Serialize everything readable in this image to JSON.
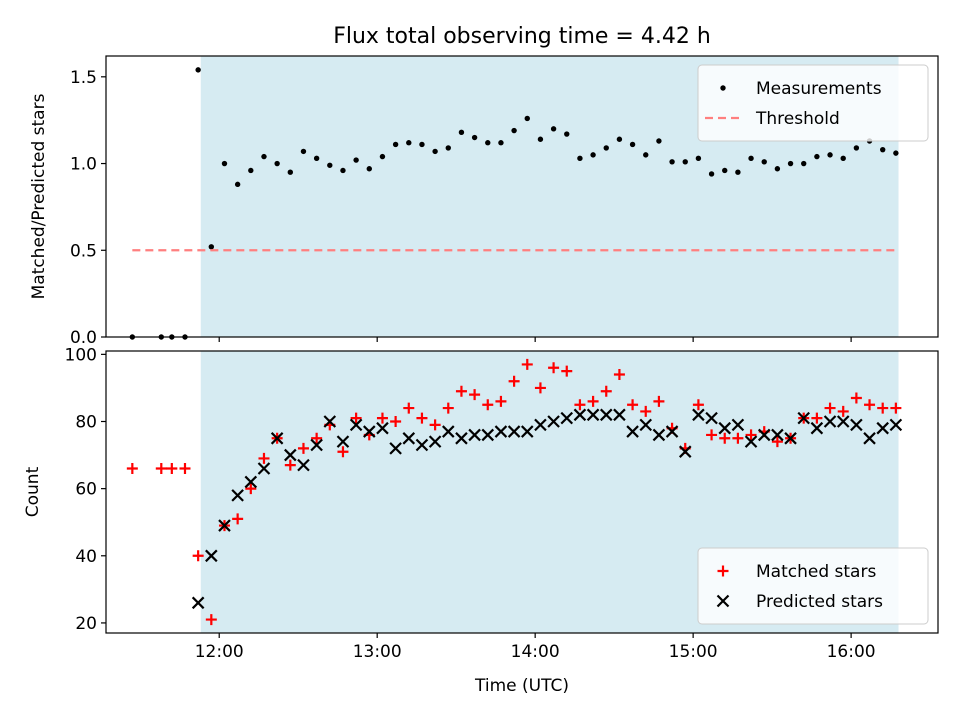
{
  "title": "Flux total observing time = 4.42 h",
  "chart_data": [
    {
      "type": "scatter",
      "ylabel": "Matched/Predicted stars",
      "ylim": [
        0,
        1.62
      ],
      "yticks": [
        0,
        0.5,
        1,
        1.5
      ],
      "ytick_labels": [
        "0.0",
        "0.5",
        "1.0",
        "1.5"
      ],
      "xlim": [
        "11:17",
        "16:33"
      ],
      "shaded_region": [
        "11:53",
        "16:18"
      ],
      "legend_position": "top-right",
      "series": [
        {
          "name": "Measurements",
          "marker": "dot",
          "color": "#000000",
          "points": [
            [
              "11:27",
              0
            ],
            [
              "11:38",
              0
            ],
            [
              "11:42",
              0
            ],
            [
              "11:47",
              0
            ],
            [
              "11:52",
              1.54
            ],
            [
              "11:57",
              0.52
            ],
            [
              "12:02",
              1.0
            ],
            [
              "12:07",
              0.88
            ],
            [
              "12:12",
              0.96
            ],
            [
              "12:17",
              1.04
            ],
            [
              "12:22",
              1.0
            ],
            [
              "12:27",
              0.95
            ],
            [
              "12:32",
              1.07
            ],
            [
              "12:37",
              1.03
            ],
            [
              "12:42",
              0.99
            ],
            [
              "12:47",
              0.96
            ],
            [
              "12:52",
              1.02
            ],
            [
              "12:57",
              0.97
            ],
            [
              "13:02",
              1.04
            ],
            [
              "13:07",
              1.11
            ],
            [
              "13:12",
              1.12
            ],
            [
              "13:17",
              1.11
            ],
            [
              "13:22",
              1.07
            ],
            [
              "13:27",
              1.09
            ],
            [
              "13:32",
              1.18
            ],
            [
              "13:37",
              1.15
            ],
            [
              "13:42",
              1.12
            ],
            [
              "13:47",
              1.12
            ],
            [
              "13:52",
              1.19
            ],
            [
              "13:57",
              1.26
            ],
            [
              "14:02",
              1.14
            ],
            [
              "14:07",
              1.2
            ],
            [
              "14:12",
              1.17
            ],
            [
              "14:17",
              1.03
            ],
            [
              "14:22",
              1.05
            ],
            [
              "14:27",
              1.09
            ],
            [
              "14:32",
              1.14
            ],
            [
              "14:37",
              1.11
            ],
            [
              "14:42",
              1.05
            ],
            [
              "14:47",
              1.13
            ],
            [
              "14:52",
              1.01
            ],
            [
              "14:57",
              1.01
            ],
            [
              "15:02",
              1.03
            ],
            [
              "15:07",
              0.94
            ],
            [
              "15:12",
              0.96
            ],
            [
              "15:17",
              0.95
            ],
            [
              "15:22",
              1.03
            ],
            [
              "15:27",
              1.01
            ],
            [
              "15:32",
              0.97
            ],
            [
              "15:37",
              1.0
            ],
            [
              "15:42",
              1.0
            ],
            [
              "15:47",
              1.04
            ],
            [
              "15:52",
              1.05
            ],
            [
              "15:57",
              1.03
            ],
            [
              "16:02",
              1.09
            ],
            [
              "16:07",
              1.13
            ],
            [
              "16:12",
              1.08
            ],
            [
              "16:17",
              1.06
            ]
          ]
        },
        {
          "name": "Threshold",
          "marker": "dashed-line",
          "color": "#ff7f7f",
          "points": [
            [
              "11:27",
              0.5
            ],
            [
              "16:18",
              0.5
            ]
          ]
        }
      ]
    },
    {
      "type": "scatter",
      "xlabel": "Time (UTC)",
      "ylabel": "Count",
      "ylim": [
        17,
        101
      ],
      "yticks": [
        20,
        40,
        60,
        80,
        100
      ],
      "ytick_labels": [
        "20",
        "40",
        "60",
        "80",
        "100"
      ],
      "xlim": [
        "11:17",
        "16:33"
      ],
      "xticks": [
        "12:00",
        "13:00",
        "14:00",
        "15:00",
        "16:00"
      ],
      "shaded_region": [
        "11:53",
        "16:18"
      ],
      "legend_position": "bottom-right",
      "series": [
        {
          "name": "Matched stars",
          "marker": "plus",
          "color": "#ff0000",
          "points": [
            [
              "11:27",
              66
            ],
            [
              "11:38",
              66
            ],
            [
              "11:42",
              66
            ],
            [
              "11:47",
              66
            ],
            [
              "11:52",
              40
            ],
            [
              "11:57",
              21
            ],
            [
              "12:02",
              49
            ],
            [
              "12:07",
              51
            ],
            [
              "12:12",
              60
            ],
            [
              "12:17",
              69
            ],
            [
              "12:22",
              75
            ],
            [
              "12:27",
              67
            ],
            [
              "12:32",
              72
            ],
            [
              "12:37",
              75
            ],
            [
              "12:42",
              79
            ],
            [
              "12:47",
              71
            ],
            [
              "12:52",
              81
            ],
            [
              "12:57",
              76
            ],
            [
              "13:02",
              81
            ],
            [
              "13:07",
              80
            ],
            [
              "13:12",
              84
            ],
            [
              "13:17",
              81
            ],
            [
              "13:22",
              79
            ],
            [
              "13:27",
              84
            ],
            [
              "13:32",
              89
            ],
            [
              "13:37",
              88
            ],
            [
              "13:42",
              85
            ],
            [
              "13:47",
              86
            ],
            [
              "13:52",
              92
            ],
            [
              "13:57",
              97
            ],
            [
              "14:02",
              90
            ],
            [
              "14:07",
              96
            ],
            [
              "14:12",
              95
            ],
            [
              "14:17",
              85
            ],
            [
              "14:22",
              86
            ],
            [
              "14:27",
              89
            ],
            [
              "14:32",
              94
            ],
            [
              "14:37",
              85
            ],
            [
              "14:42",
              83
            ],
            [
              "14:47",
              86
            ],
            [
              "14:52",
              78
            ],
            [
              "14:57",
              72
            ],
            [
              "15:02",
              85
            ],
            [
              "15:07",
              76
            ],
            [
              "15:12",
              75
            ],
            [
              "15:17",
              75
            ],
            [
              "15:22",
              76
            ],
            [
              "15:27",
              77
            ],
            [
              "15:32",
              74
            ],
            [
              "15:37",
              75
            ],
            [
              "15:42",
              81
            ],
            [
              "15:47",
              81
            ],
            [
              "15:52",
              84
            ],
            [
              "15:57",
              83
            ],
            [
              "16:02",
              87
            ],
            [
              "16:07",
              85
            ],
            [
              "16:12",
              84
            ],
            [
              "16:17",
              84
            ]
          ]
        },
        {
          "name": "Predicted stars",
          "marker": "x",
          "color": "#000000",
          "points": [
            [
              "11:52",
              26
            ],
            [
              "11:57",
              40
            ],
            [
              "12:02",
              49
            ],
            [
              "12:07",
              58
            ],
            [
              "12:12",
              62
            ],
            [
              "12:17",
              66
            ],
            [
              "12:22",
              75
            ],
            [
              "12:27",
              70
            ],
            [
              "12:32",
              67
            ],
            [
              "12:37",
              73
            ],
            [
              "12:42",
              80
            ],
            [
              "12:47",
              74
            ],
            [
              "12:52",
              79
            ],
            [
              "12:57",
              77
            ],
            [
              "13:02",
              78
            ],
            [
              "13:07",
              72
            ],
            [
              "13:12",
              75
            ],
            [
              "13:17",
              73
            ],
            [
              "13:22",
              74
            ],
            [
              "13:27",
              77
            ],
            [
              "13:32",
              75
            ],
            [
              "13:37",
              76
            ],
            [
              "13:42",
              76
            ],
            [
              "13:47",
              77
            ],
            [
              "13:52",
              77
            ],
            [
              "13:57",
              77
            ],
            [
              "14:02",
              79
            ],
            [
              "14:07",
              80
            ],
            [
              "14:12",
              81
            ],
            [
              "14:17",
              82
            ],
            [
              "14:22",
              82
            ],
            [
              "14:27",
              82
            ],
            [
              "14:32",
              82
            ],
            [
              "14:37",
              77
            ],
            [
              "14:42",
              79
            ],
            [
              "14:47",
              76
            ],
            [
              "14:52",
              77
            ],
            [
              "14:57",
              71
            ],
            [
              "15:02",
              82
            ],
            [
              "15:07",
              81
            ],
            [
              "15:12",
              78
            ],
            [
              "15:17",
              79
            ],
            [
              "15:22",
              74
            ],
            [
              "15:27",
              76
            ],
            [
              "15:32",
              76
            ],
            [
              "15:37",
              75
            ],
            [
              "15:42",
              81
            ],
            [
              "15:47",
              78
            ],
            [
              "15:52",
              80
            ],
            [
              "15:57",
              80
            ],
            [
              "16:02",
              79
            ],
            [
              "16:07",
              75
            ],
            [
              "16:12",
              78
            ],
            [
              "16:17",
              79
            ]
          ]
        }
      ]
    }
  ],
  "colors": {
    "shading": "#add8e6",
    "matched": "#ff0000",
    "predicted": "#000000",
    "threshold": "#ff7f7f"
  }
}
